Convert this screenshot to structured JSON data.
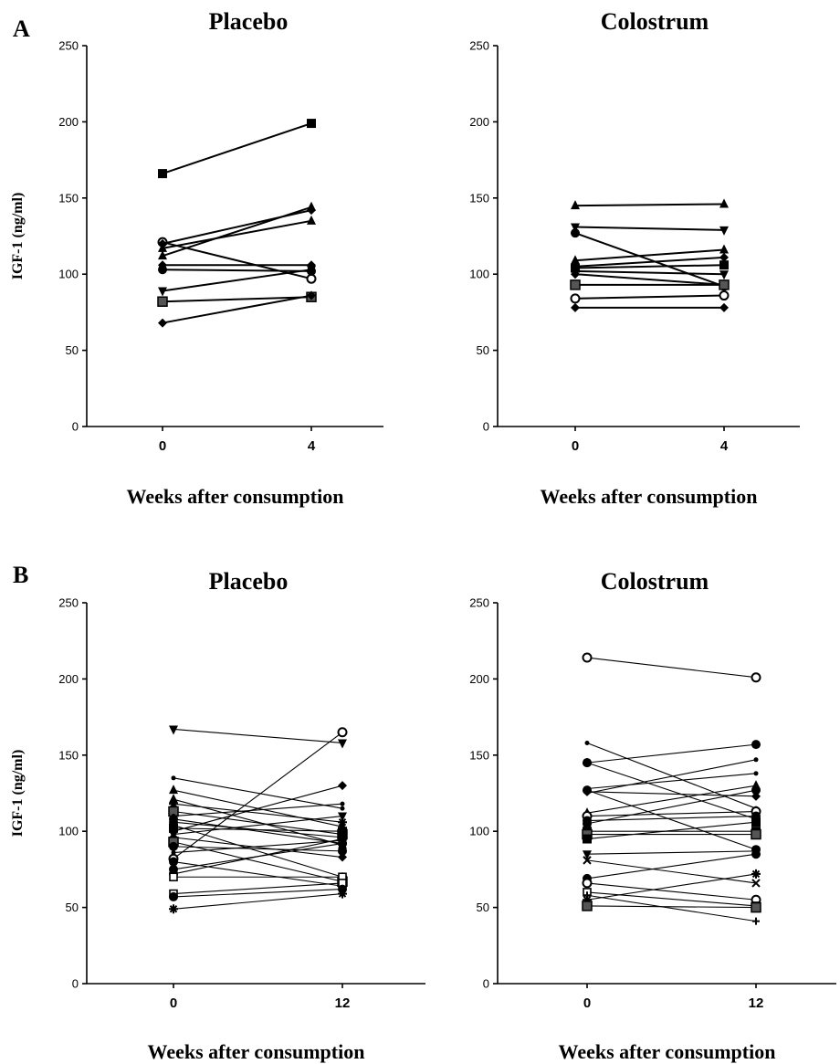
{
  "panel_labels": [
    "A",
    "B"
  ],
  "chart_data": [
    {
      "type": "line",
      "title": "Placebo",
      "xlabel": "Weeks after consumption",
      "ylabel": "IGF-1 (ng/ml)",
      "x": [
        0,
        4
      ],
      "xticks": [
        "0",
        "4"
      ],
      "ylim": [
        0,
        250
      ],
      "yticks": [
        0,
        50,
        100,
        150,
        200,
        250
      ],
      "series": [
        {
          "values": [
            166,
            199
          ],
          "marker": "square"
        },
        {
          "values": [
            121,
            97
          ],
          "marker": "circle-open"
        },
        {
          "values": [
            120,
            142
          ],
          "marker": "diamond"
        },
        {
          "values": [
            117,
            135
          ],
          "marker": "triangle"
        },
        {
          "values": [
            112,
            144
          ],
          "marker": "triangle"
        },
        {
          "values": [
            106,
            106
          ],
          "marker": "diamond"
        },
        {
          "values": [
            103,
            102
          ],
          "marker": "circle"
        },
        {
          "values": [
            89,
            103
          ],
          "marker": "triangle-down"
        },
        {
          "values": [
            82,
            85
          ],
          "marker": "square-gray"
        },
        {
          "values": [
            68,
            86
          ],
          "marker": "diamond"
        }
      ]
    },
    {
      "type": "line",
      "title": "Colostrum",
      "xlabel": "Weeks after consumption",
      "ylabel": "",
      "x": [
        0,
        4
      ],
      "xticks": [
        "0",
        "4"
      ],
      "ylim": [
        0,
        250
      ],
      "yticks": [
        0,
        50,
        100,
        150,
        200,
        250
      ],
      "series": [
        {
          "values": [
            145,
            146
          ],
          "marker": "triangle"
        },
        {
          "values": [
            131,
            129
          ],
          "marker": "triangle-down"
        },
        {
          "values": [
            127,
            92
          ],
          "marker": "circle"
        },
        {
          "values": [
            109,
            116
          ],
          "marker": "triangle"
        },
        {
          "values": [
            105,
            111
          ],
          "marker": "diamond"
        },
        {
          "values": [
            104,
            106
          ],
          "marker": "square"
        },
        {
          "values": [
            102,
            100
          ],
          "marker": "triangle-down"
        },
        {
          "values": [
            100,
            93
          ],
          "marker": "diamond"
        },
        {
          "values": [
            93,
            93
          ],
          "marker": "square-gray"
        },
        {
          "values": [
            84,
            86
          ],
          "marker": "circle-open"
        },
        {
          "values": [
            78,
            78
          ],
          "marker": "diamond"
        }
      ]
    },
    {
      "type": "line",
      "title": "Placebo",
      "xlabel": "Weeks after consumption",
      "ylabel": "IGF-1 (ng/ml)",
      "x": [
        0,
        12
      ],
      "xticks": [
        "0",
        "12"
      ],
      "ylim": [
        0,
        250
      ],
      "yticks": [
        0,
        50,
        100,
        150,
        200,
        250
      ],
      "series": [
        {
          "values": [
            167,
            158
          ],
          "marker": "triangle-down"
        },
        {
          "values": [
            135,
            115
          ],
          "marker": "small"
        },
        {
          "values": [
            127,
            103
          ],
          "marker": "triangle"
        },
        {
          "values": [
            121,
            91
          ],
          "marker": "triangle"
        },
        {
          "values": [
            118,
            106
          ],
          "marker": "star"
        },
        {
          "values": [
            113,
            98
          ],
          "marker": "square-gray"
        },
        {
          "values": [
            110,
            118
          ],
          "marker": "small"
        },
        {
          "values": [
            108,
            92
          ],
          "marker": "circle"
        },
        {
          "values": [
            106,
            96
          ],
          "marker": "circle"
        },
        {
          "values": [
            104,
            70
          ],
          "marker": "circle"
        },
        {
          "values": [
            102,
            100
          ],
          "marker": "square"
        },
        {
          "values": [
            100,
            130
          ],
          "marker": "diamond"
        },
        {
          "values": [
            98,
            110
          ],
          "marker": "triangle-down"
        },
        {
          "values": [
            96,
            83
          ],
          "marker": "diamond"
        },
        {
          "values": [
            93,
            67
          ],
          "marker": "square-gray"
        },
        {
          "values": [
            90,
            87
          ],
          "marker": "circle"
        },
        {
          "values": [
            86,
            94
          ],
          "marker": "small"
        },
        {
          "values": [
            82,
            165
          ],
          "marker": "circle-open"
        },
        {
          "values": [
            80,
            64
          ],
          "marker": "circle"
        },
        {
          "values": [
            75,
            92
          ],
          "marker": "circle"
        },
        {
          "values": [
            72,
            95
          ],
          "marker": "circle"
        },
        {
          "values": [
            70,
            70
          ],
          "marker": "square-open"
        },
        {
          "values": [
            59,
            66
          ],
          "marker": "square-open"
        },
        {
          "values": [
            57,
            62
          ],
          "marker": "circle"
        },
        {
          "values": [
            49,
            59
          ],
          "marker": "star"
        }
      ]
    },
    {
      "type": "line",
      "title": "Colostrum",
      "xlabel": "Weeks after consumption",
      "ylabel": "",
      "x": [
        0,
        12
      ],
      "xticks": [
        "0",
        "12"
      ],
      "ylim": [
        0,
        250
      ],
      "yticks": [
        0,
        50,
        100,
        150,
        200,
        250
      ],
      "series": [
        {
          "values": [
            214,
            201
          ],
          "marker": "circle-open"
        },
        {
          "values": [
            158,
            115
          ],
          "marker": "small"
        },
        {
          "values": [
            145,
            157
          ],
          "marker": "circle"
        },
        {
          "values": [
            145,
            108
          ],
          "marker": "circle"
        },
        {
          "values": [
            128,
            138
          ],
          "marker": "small"
        },
        {
          "values": [
            127,
            88
          ],
          "marker": "circle"
        },
        {
          "values": [
            126,
            123
          ],
          "marker": "diamond"
        },
        {
          "values": [
            125,
            147
          ],
          "marker": "small"
        },
        {
          "values": [
            112,
            130
          ],
          "marker": "triangle"
        },
        {
          "values": [
            110,
            113
          ],
          "marker": "circle-open"
        },
        {
          "values": [
            107,
            110
          ],
          "marker": "circle"
        },
        {
          "values": [
            105,
            127
          ],
          "marker": "circle"
        },
        {
          "values": [
            100,
            100
          ],
          "marker": "square"
        },
        {
          "values": [
            98,
            98
          ],
          "marker": "square-gray"
        },
        {
          "values": [
            95,
            106
          ],
          "marker": "square"
        },
        {
          "values": [
            85,
            87
          ],
          "marker": "triangle-down"
        },
        {
          "values": [
            81,
            66
          ],
          "marker": "cross"
        },
        {
          "values": [
            69,
            85
          ],
          "marker": "circle"
        },
        {
          "values": [
            66,
            55
          ],
          "marker": "circle-open"
        },
        {
          "values": [
            60,
            51
          ],
          "marker": "square-open"
        },
        {
          "values": [
            58,
            41
          ],
          "marker": "plus"
        },
        {
          "values": [
            55,
            72
          ],
          "marker": "star"
        },
        {
          "values": [
            51,
            50
          ],
          "marker": "square-gray"
        }
      ]
    }
  ]
}
